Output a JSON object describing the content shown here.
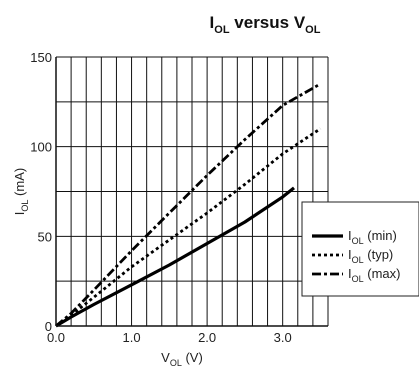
{
  "chart_data": {
    "type": "line",
    "title": {
      "main": "I",
      "main_sub": "OL",
      "mid": " versus V",
      "end_sub": "OL"
    },
    "xlabel": {
      "main": "V",
      "sub": "OL",
      "rest": " (V)"
    },
    "ylabel": {
      "main": "I",
      "sub": "OL",
      "rest": " (mA)"
    },
    "xlim": [
      0,
      3.6
    ],
    "ylim": [
      0,
      150
    ],
    "x_ticks": [
      {
        "v": 0,
        "label": "0.0"
      },
      {
        "v": 1,
        "label": "1.0"
      },
      {
        "v": 2,
        "label": "2.0"
      },
      {
        "v": 3,
        "label": "3.0"
      }
    ],
    "y_ticks": [
      {
        "v": 0,
        "label": "0"
      },
      {
        "v": 50,
        "label": "50"
      },
      {
        "v": 100,
        "label": "100"
      },
      {
        "v": 150,
        "label": "150"
      }
    ],
    "x_grid_step": 0.2,
    "y_grid_step": 25,
    "grid": true,
    "legend_position": "right",
    "series": [
      {
        "name": "I",
        "name_sub": "OL",
        "name_rest": " (min)",
        "dash": "solid",
        "x": [
          0.0,
          0.2,
          0.5,
          1.0,
          1.5,
          2.0,
          2.5,
          3.0,
          3.15
        ],
        "y": [
          0,
          5,
          12,
          23,
          34,
          46,
          58,
          72,
          77
        ]
      },
      {
        "name": "I",
        "name_sub": "OL",
        "name_rest": " (typ)",
        "dash": "dotted",
        "x": [
          0.0,
          0.2,
          0.5,
          1.0,
          1.5,
          2.0,
          2.5,
          3.0,
          3.5
        ],
        "y": [
          0,
          6,
          16,
          33,
          48,
          63,
          79,
          96,
          110
        ]
      },
      {
        "name": "I",
        "name_sub": "OL",
        "name_rest": " (max)",
        "dash": "dashdot",
        "x": [
          0.0,
          0.2,
          0.5,
          1.0,
          1.5,
          2.0,
          2.5,
          3.0,
          3.5
        ],
        "y": [
          0,
          7,
          20,
          42,
          63,
          84,
          104,
          123,
          135
        ]
      }
    ]
  }
}
